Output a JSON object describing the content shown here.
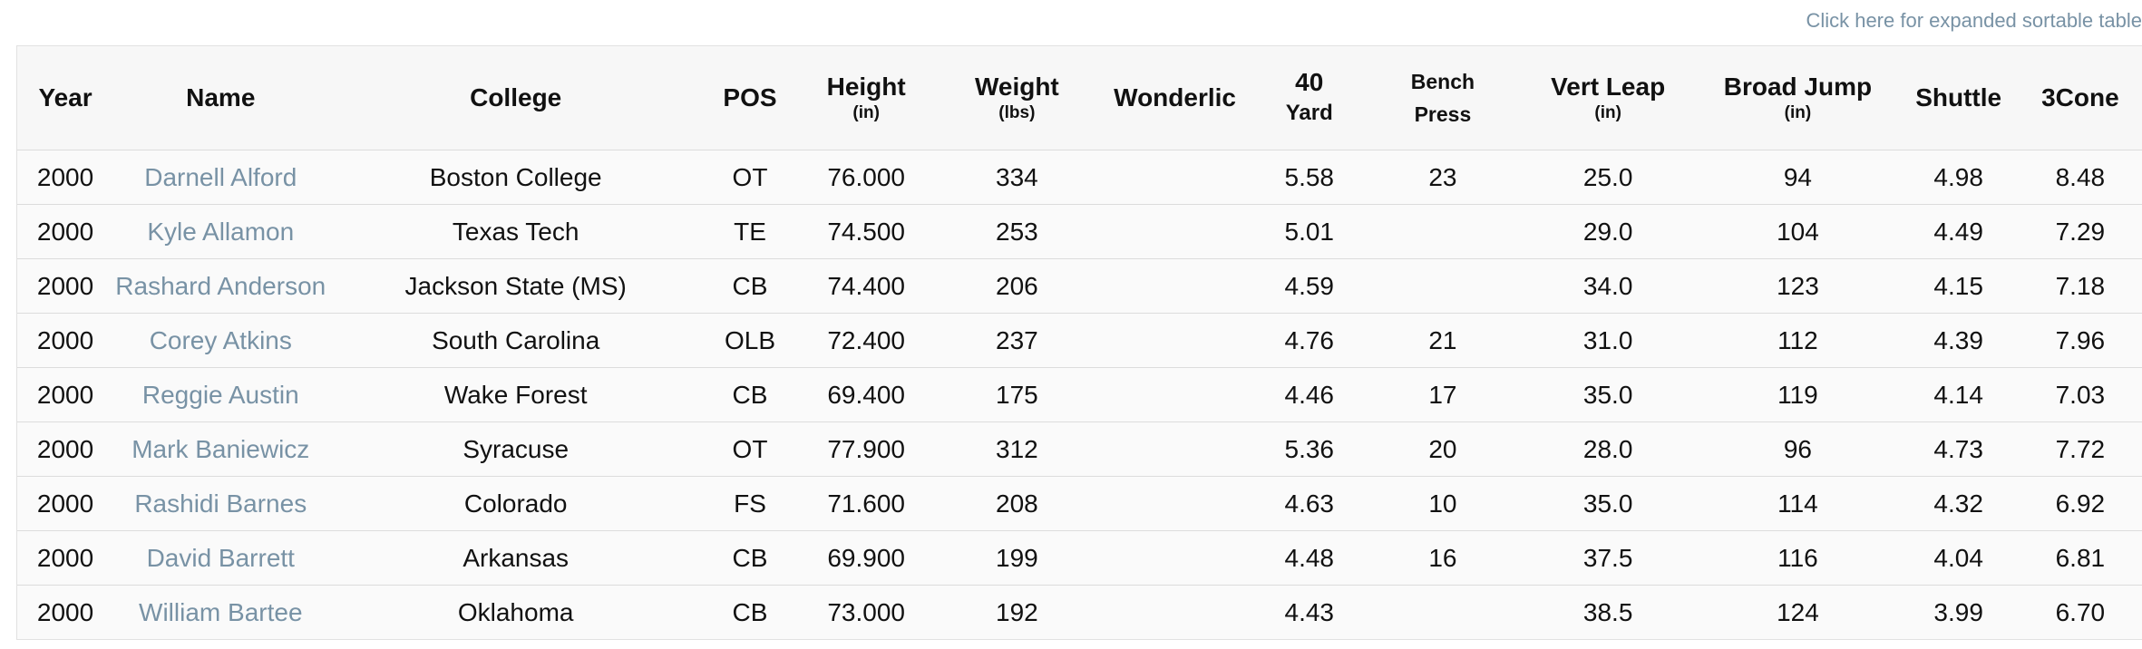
{
  "expanded_link": "Click here for expanded sortable table",
  "headers": {
    "year": "Year",
    "name": "Name",
    "college": "College",
    "pos": "POS",
    "height": "Height",
    "height_unit": "(in)",
    "weight": "Weight",
    "weight_unit": "(lbs)",
    "wonderlic": "Wonderlic",
    "forty_1": "40",
    "forty_2": "Yard",
    "bench_1": "Bench",
    "bench_2": "Press",
    "vert": "Vert Leap",
    "vert_unit": "(in)",
    "broad": "Broad Jump",
    "broad_unit": "(in)",
    "shuttle": "Shuttle",
    "cone": "3Cone"
  },
  "rows": [
    {
      "year": "2000",
      "name": "Darnell Alford",
      "college": "Boston College",
      "pos": "OT",
      "height": "76.000",
      "weight": "334",
      "wonderlic": "",
      "forty": "5.58",
      "bench": "23",
      "vert": "25.0",
      "broad": "94",
      "shuttle": "4.98",
      "cone": "8.48"
    },
    {
      "year": "2000",
      "name": "Kyle Allamon",
      "college": "Texas Tech",
      "pos": "TE",
      "height": "74.500",
      "weight": "253",
      "wonderlic": "",
      "forty": "5.01",
      "bench": "",
      "vert": "29.0",
      "broad": "104",
      "shuttle": "4.49",
      "cone": "7.29"
    },
    {
      "year": "2000",
      "name": "Rashard Anderson",
      "college": "Jackson State (MS)",
      "pos": "CB",
      "height": "74.400",
      "weight": "206",
      "wonderlic": "",
      "forty": "4.59",
      "bench": "",
      "vert": "34.0",
      "broad": "123",
      "shuttle": "4.15",
      "cone": "7.18"
    },
    {
      "year": "2000",
      "name": "Corey Atkins",
      "college": "South Carolina",
      "pos": "OLB",
      "height": "72.400",
      "weight": "237",
      "wonderlic": "",
      "forty": "4.76",
      "bench": "21",
      "vert": "31.0",
      "broad": "112",
      "shuttle": "4.39",
      "cone": "7.96"
    },
    {
      "year": "2000",
      "name": "Reggie Austin",
      "college": "Wake Forest",
      "pos": "CB",
      "height": "69.400",
      "weight": "175",
      "wonderlic": "",
      "forty": "4.46",
      "bench": "17",
      "vert": "35.0",
      "broad": "119",
      "shuttle": "4.14",
      "cone": "7.03"
    },
    {
      "year": "2000",
      "name": "Mark Baniewicz",
      "college": "Syracuse",
      "pos": "OT",
      "height": "77.900",
      "weight": "312",
      "wonderlic": "",
      "forty": "5.36",
      "bench": "20",
      "vert": "28.0",
      "broad": "96",
      "shuttle": "4.73",
      "cone": "7.72"
    },
    {
      "year": "2000",
      "name": "Rashidi Barnes",
      "college": "Colorado",
      "pos": "FS",
      "height": "71.600",
      "weight": "208",
      "wonderlic": "",
      "forty": "4.63",
      "bench": "10",
      "vert": "35.0",
      "broad": "114",
      "shuttle": "4.32",
      "cone": "6.92"
    },
    {
      "year": "2000",
      "name": "David Barrett",
      "college": "Arkansas",
      "pos": "CB",
      "height": "69.900",
      "weight": "199",
      "wonderlic": "",
      "forty": "4.48",
      "bench": "16",
      "vert": "37.5",
      "broad": "116",
      "shuttle": "4.04",
      "cone": "6.81"
    },
    {
      "year": "2000",
      "name": "William Bartee",
      "college": "Oklahoma",
      "pos": "CB",
      "height": "73.000",
      "weight": "192",
      "wonderlic": "",
      "forty": "4.43",
      "bench": "",
      "vert": "38.5",
      "broad": "124",
      "shuttle": "3.99",
      "cone": "6.70"
    }
  ]
}
